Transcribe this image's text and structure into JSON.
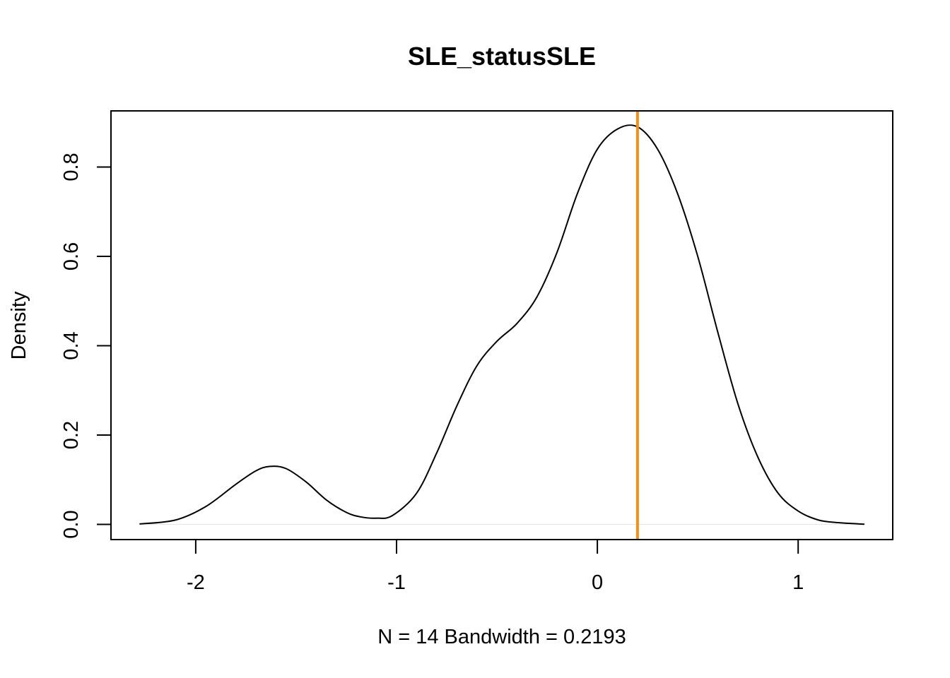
{
  "chart_data": {
    "type": "line",
    "title": "SLE_statusSLE",
    "xlabel": "N = 14   Bandwidth = 0.2193",
    "ylabel": "Density",
    "xlim": [
      -2.422,
      1.471
    ],
    "ylim": [
      -0.0339,
      0.9257
    ],
    "x_ticks": [
      -2,
      -1,
      0,
      1
    ],
    "x_tick_labels": [
      "-2",
      "-1",
      "0",
      "1"
    ],
    "y_ticks": [
      0,
      0.2,
      0.4,
      0.6,
      0.8
    ],
    "y_tick_labels": [
      "0.0",
      "0.2",
      "0.4",
      "0.6",
      "0.8"
    ],
    "grid": false,
    "legend": "none",
    "series": [
      {
        "name": "density",
        "color": "#000000",
        "x": [
          -2.28,
          -2.1,
          -1.95,
          -1.8,
          -1.7,
          -1.63,
          -1.55,
          -1.45,
          -1.35,
          -1.25,
          -1.18,
          -1.1,
          -1.02,
          -0.9,
          -0.8,
          -0.7,
          -0.6,
          -0.5,
          -0.4,
          -0.3,
          -0.2,
          -0.1,
          0.0,
          0.1,
          0.2,
          0.3,
          0.4,
          0.5,
          0.6,
          0.7,
          0.8,
          0.9,
          1.0,
          1.1,
          1.2,
          1.33
        ],
        "y": [
          0.001,
          0.01,
          0.04,
          0.09,
          0.12,
          0.13,
          0.125,
          0.095,
          0.055,
          0.027,
          0.017,
          0.014,
          0.02,
          0.07,
          0.16,
          0.265,
          0.355,
          0.41,
          0.45,
          0.51,
          0.61,
          0.74,
          0.84,
          0.885,
          0.89,
          0.84,
          0.74,
          0.6,
          0.43,
          0.27,
          0.15,
          0.07,
          0.03,
          0.01,
          0.004,
          0.0005
        ]
      }
    ],
    "vline": {
      "x": 0.2,
      "color": "#F39019"
    },
    "baseline": {
      "y": 0,
      "color": "#E6E6E6"
    }
  }
}
